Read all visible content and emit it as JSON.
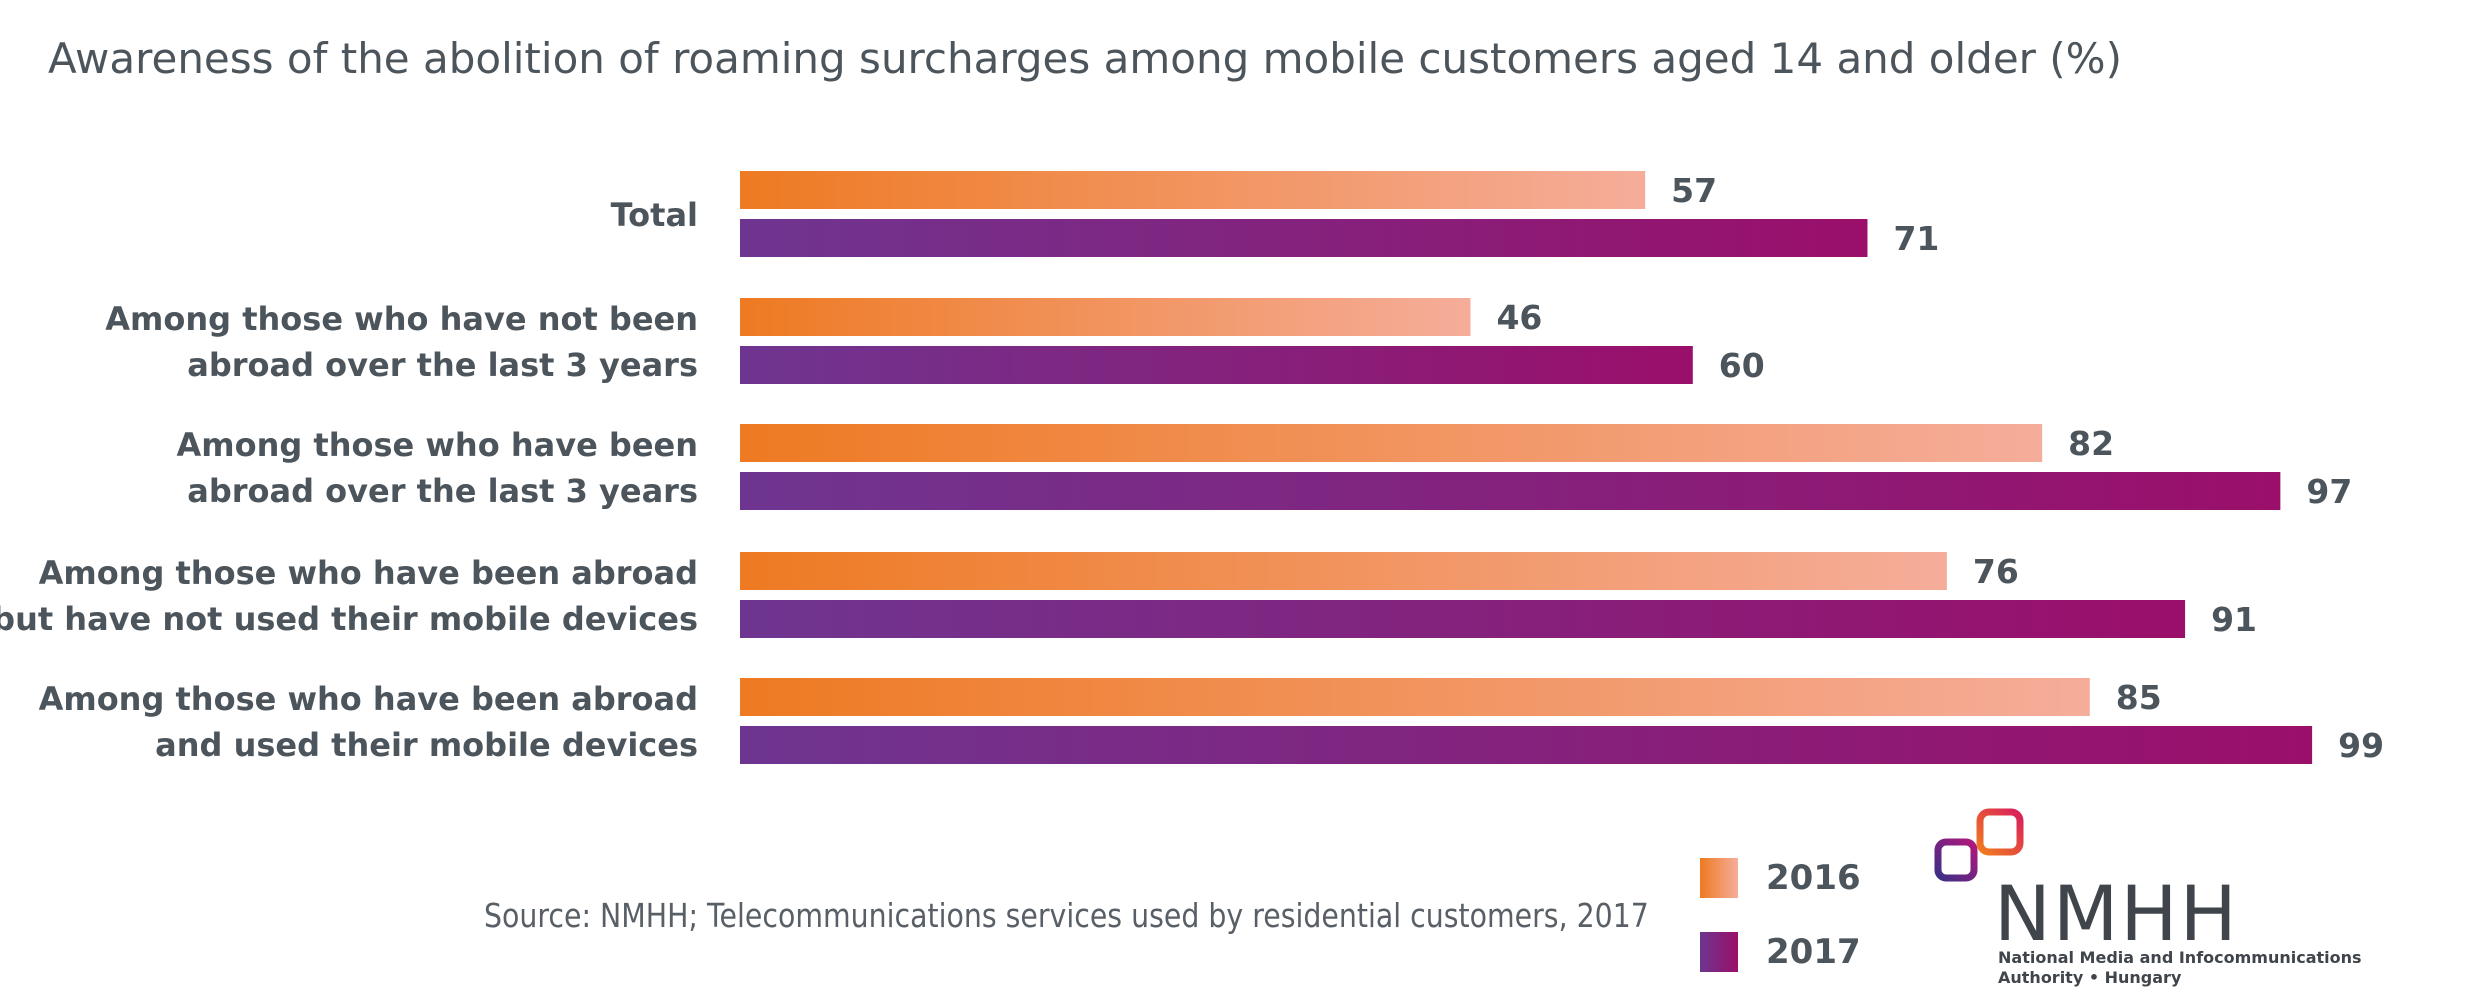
{
  "chart_data": {
    "type": "bar",
    "orientation": "horizontal",
    "title": "Awareness of the abolition of roaming surcharges among mobile customers aged 14 and older (%)",
    "categories": [
      [
        "Total"
      ],
      [
        "Among those who have not been",
        "abroad over the last 3 years"
      ],
      [
        "Among those who have been",
        "abroad over the last 3 years"
      ],
      [
        "Among those who have been abroad",
        "but have not used their mobile devices"
      ],
      [
        "Among those who have been abroad",
        "and used their mobile devices"
      ]
    ],
    "series": [
      {
        "name": "2016",
        "values": [
          57,
          46,
          82,
          76,
          85
        ],
        "color_start": "#ee7a22",
        "color_end": "#f5ad9a"
      },
      {
        "name": "2017",
        "values": [
          71,
          60,
          97,
          91,
          99
        ],
        "color_start": "#6e3590",
        "color_end": "#9a0f6a"
      }
    ],
    "xlim": [
      0,
      100
    ],
    "grid": false,
    "legend_position": "bottom-right"
  },
  "source": "Source: NMHH; Telecommunications services used by residential customers, 2017",
  "logo": {
    "wordmark": "NMHH",
    "line1": "National Media and Infocommunications",
    "line2": "Authority • Hungary"
  }
}
